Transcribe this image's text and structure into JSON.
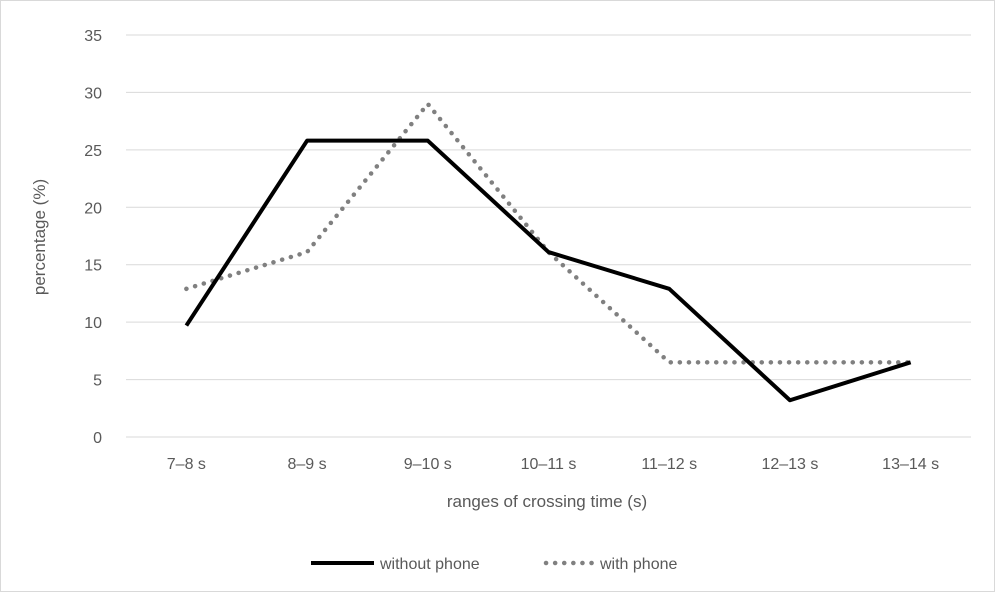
{
  "chart_data": {
    "type": "line",
    "title": "",
    "xlabel": "ranges of crossing time (s)",
    "ylabel": "percentage (%)",
    "categories": [
      "7–8 s",
      "8–9 s",
      "9–10 s",
      "10–11 s",
      "11–12 s",
      "12–13 s",
      "13–14 s"
    ],
    "ylim": [
      0,
      35
    ],
    "yticks": [
      "0",
      "5",
      "10",
      "15",
      "20",
      "25",
      "30",
      "35"
    ],
    "grid": true,
    "legend_position": "bottom",
    "series": [
      {
        "name": "without phone",
        "values": [
          9.7,
          25.8,
          25.8,
          16.1,
          12.9,
          3.2,
          6.5
        ],
        "color": "#000000",
        "style": "solid"
      },
      {
        "name": "with phone",
        "values": [
          12.9,
          16.1,
          29.0,
          16.1,
          6.5,
          6.5,
          6.5
        ],
        "color": "#808080",
        "style": "dotted"
      }
    ]
  }
}
